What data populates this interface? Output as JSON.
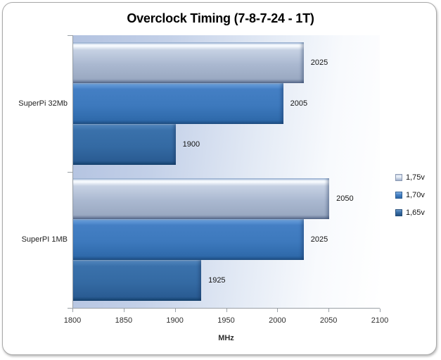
{
  "chart_data": {
    "type": "bar",
    "orientation": "horizontal",
    "title": "Overclock Timing (7-8-7-24 - 1T)",
    "xlabel": "MHz",
    "xlim": [
      1800,
      2100
    ],
    "xticks": [
      1800,
      1850,
      1900,
      1950,
      2000,
      2050,
      2100
    ],
    "categories": [
      "SuperPi 32Mb",
      "SuperPI 1MB"
    ],
    "series": [
      {
        "name": "1,75v",
        "color": "#aab8d0",
        "values": [
          2025,
          2050
        ]
      },
      {
        "name": "1,70v",
        "color": "#3d79bd",
        "values": [
          2005,
          2025
        ]
      },
      {
        "name": "1,65v",
        "color": "#346aa3",
        "values": [
          1900,
          1925
        ]
      }
    ],
    "data_labels": true,
    "grid": false,
    "legend_position": "right",
    "plot_background_left": "#b2c2e0",
    "plot_background_right": "#ffffff",
    "axis_color": "#9aa0a6",
    "text_color": "#141414"
  }
}
